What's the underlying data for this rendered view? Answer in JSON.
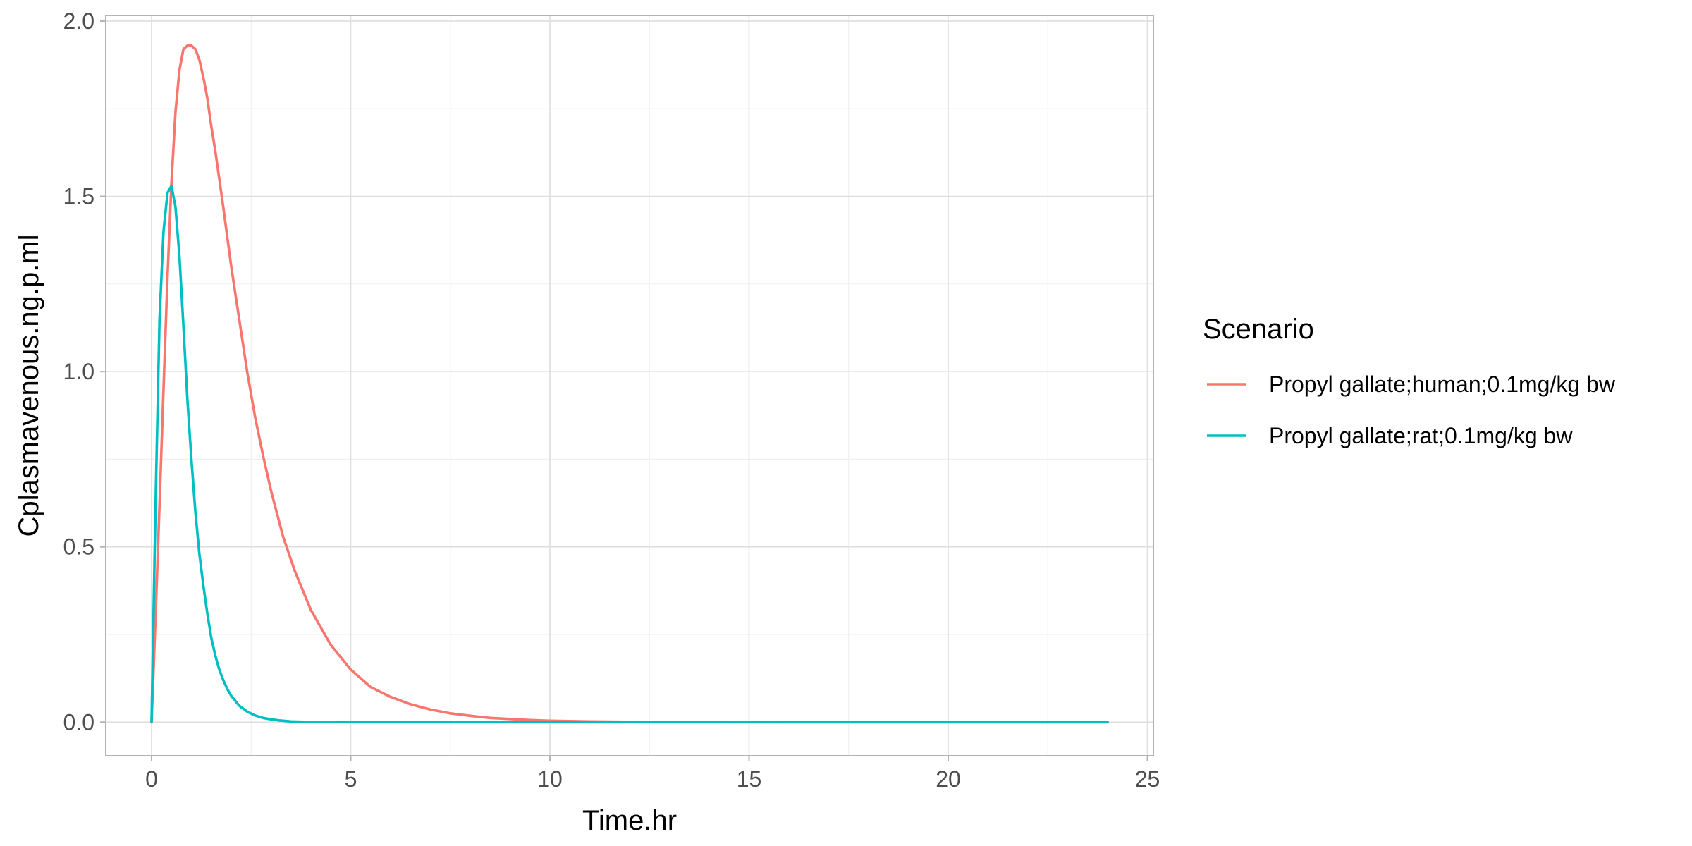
{
  "chart_data": {
    "type": "line",
    "xlabel": "Time.hr",
    "ylabel": "Cplasmavenous.ng.p.ml",
    "xlim": [
      -1.15,
      25.15
    ],
    "ylim": [
      -0.096,
      2.016
    ],
    "x_ticks": [
      0,
      5,
      10,
      15,
      20,
      25
    ],
    "x_tick_labels": [
      "0",
      "5",
      "10",
      "15",
      "20",
      "25"
    ],
    "y_ticks": [
      0.0,
      0.5,
      1.0,
      1.5,
      2.0
    ],
    "y_tick_labels": [
      "0.0",
      "0.5",
      "1.0",
      "1.5",
      "2.0"
    ],
    "grid": true,
    "legend": {
      "title": "Scenario",
      "placement": "right"
    },
    "series": [
      {
        "name": "Propyl gallate;human;0.1mg/kg bw",
        "color": "#F8766D",
        "x": [
          0,
          0.1,
          0.2,
          0.3,
          0.4,
          0.5,
          0.6,
          0.7,
          0.8,
          0.9,
          1.0,
          1.1,
          1.2,
          1.3,
          1.4,
          1.5,
          1.6,
          1.8,
          2.0,
          2.2,
          2.4,
          2.6,
          2.8,
          3.0,
          3.3,
          3.6,
          4.0,
          4.5,
          5.0,
          5.5,
          6.0,
          6.5,
          7.0,
          7.5,
          8.0,
          8.5,
          9.0,
          9.5,
          10.0,
          10.5,
          11.0,
          12.0,
          13.0,
          14.0,
          16.0,
          18.0,
          20.0,
          22.0,
          24.0
        ],
        "y": [
          0.0,
          0.3,
          0.62,
          0.95,
          1.27,
          1.54,
          1.74,
          1.86,
          1.92,
          1.93,
          1.93,
          1.92,
          1.89,
          1.84,
          1.78,
          1.7,
          1.63,
          1.47,
          1.3,
          1.15,
          1.0,
          0.87,
          0.76,
          0.66,
          0.53,
          0.43,
          0.32,
          0.22,
          0.15,
          0.1,
          0.072,
          0.051,
          0.036,
          0.025,
          0.018,
          0.012,
          0.009,
          0.006,
          0.004,
          0.003,
          0.002,
          0.001,
          0.0005,
          0.0002,
          0.0,
          0.0,
          0.0,
          0.0,
          0.0
        ]
      },
      {
        "name": "Propyl gallate;rat;0.1mg/kg bw",
        "color": "#00BFC4",
        "x": [
          0,
          0.1,
          0.2,
          0.3,
          0.4,
          0.5,
          0.6,
          0.7,
          0.8,
          0.9,
          1.0,
          1.1,
          1.2,
          1.3,
          1.4,
          1.5,
          1.6,
          1.7,
          1.8,
          1.9,
          2.0,
          2.2,
          2.4,
          2.6,
          2.8,
          3.0,
          3.2,
          3.5,
          3.8,
          4.2,
          4.6,
          5.0,
          6.0,
          8.0,
          10.0,
          12.0,
          15.0,
          18.0,
          21.0,
          24.0
        ],
        "y": [
          0.0,
          0.62,
          1.15,
          1.4,
          1.51,
          1.53,
          1.47,
          1.33,
          1.13,
          0.92,
          0.75,
          0.6,
          0.48,
          0.39,
          0.31,
          0.24,
          0.19,
          0.15,
          0.12,
          0.095,
          0.075,
          0.047,
          0.03,
          0.019,
          0.012,
          0.008,
          0.005,
          0.002,
          0.001,
          0.0005,
          0.0002,
          0.0,
          0.0,
          0.0,
          0.0,
          0.0,
          0.0,
          0.0,
          0.0,
          0.0
        ]
      }
    ]
  }
}
